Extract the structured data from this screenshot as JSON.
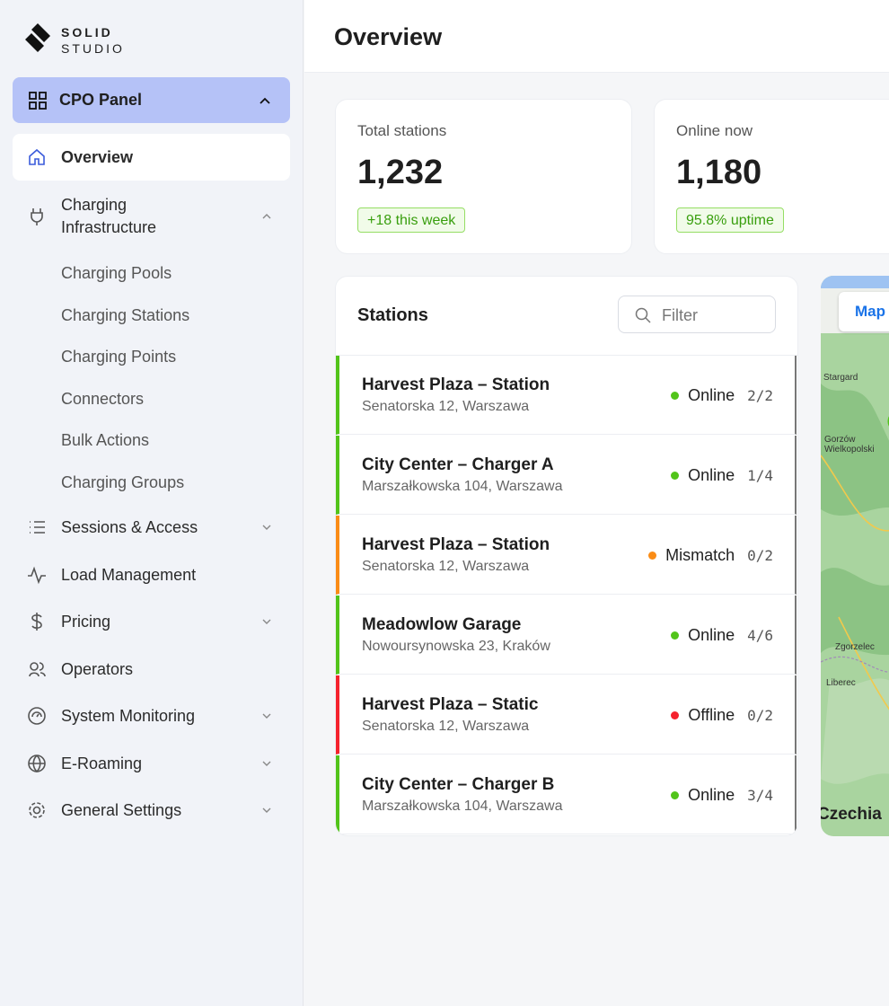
{
  "logo": {
    "line1": "SOLID",
    "line2": "STUDIO"
  },
  "sidebar": {
    "panel_title": "CPO Panel",
    "items": [
      "Overview",
      "Charging Infrastructure",
      "Sessions & Access",
      "Load Management",
      "Pricing",
      "Operators",
      "System Monitoring",
      "E-Roaming",
      "General Settings"
    ],
    "subitems": [
      "Charging Pools",
      "Charging Stations",
      "Charging Points",
      "Connectors",
      "Bulk Actions",
      "Charging Groups"
    ]
  },
  "header": {
    "title": "Overview"
  },
  "stats": [
    {
      "label": "Total stations",
      "value": "1,232",
      "badge": "+18 this week"
    },
    {
      "label": "Online now",
      "value": "1,180",
      "badge": "95.8% uptime"
    }
  ],
  "stations": {
    "title": "Stations",
    "filter_placeholder": "Filter",
    "rows": [
      {
        "name": "Harvest Plaza – Station",
        "address": "Senatorska 12, Warszawa",
        "status": "Online",
        "count": "2/2",
        "color": "#52c41a"
      },
      {
        "name": "City Center – Charger A",
        "address": "Marszałkowska 104, Warszawa",
        "status": "Online",
        "count": "1/4",
        "color": "#52c41a"
      },
      {
        "name": "Harvest Plaza – Station",
        "address": "Senatorska 12, Warszawa",
        "status": "Mismatch",
        "count": "0/2",
        "color": "#fa8c16"
      },
      {
        "name": "Meadowlow Garage",
        "address": "Nowoursynowska 23, Kraków",
        "status": "Online",
        "count": "4/6",
        "color": "#52c41a"
      },
      {
        "name": "Harvest Plaza – Static",
        "address": "Senatorska 12, Warszawa",
        "status": "Offline",
        "count": "0/2",
        "color": "#f5222d"
      },
      {
        "name": "City Center – Charger B",
        "address": "Marszałkowska 104, Warszawa",
        "status": "Online",
        "count": "3/4",
        "color": "#52c41a"
      }
    ]
  },
  "map": {
    "button": "Map",
    "labels": [
      "Stargard",
      "Gorzów Wielkopolski",
      "Zgorzelec",
      "Liberec",
      "Czechia"
    ]
  }
}
